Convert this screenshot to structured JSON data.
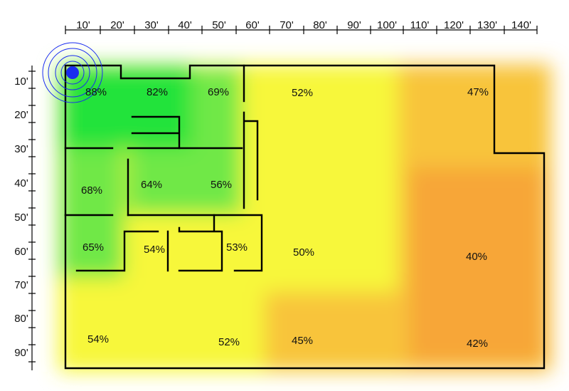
{
  "scale": {
    "x_labels": [
      "10'",
      "20'",
      "30'",
      "40'",
      "50'",
      "60'",
      "70'",
      "80'",
      "90'",
      "100'",
      "110'",
      "120'",
      "130'",
      "140'"
    ],
    "y_labels": [
      "10'",
      "20'",
      "30'",
      "40'",
      "50'",
      "60'",
      "70'",
      "80'",
      "90'"
    ]
  },
  "router": {
    "color": "#1a2cf0"
  },
  "colors": {
    "very_strong": "#22e33a",
    "strong": "#6fe846",
    "medium": "#f7f73a",
    "weak": "#f8c43a",
    "weakest": "#f7a637",
    "walls": "#000000"
  },
  "rooms": [
    {
      "id": "r1",
      "signal": "88%"
    },
    {
      "id": "r2",
      "signal": "82%"
    },
    {
      "id": "r3",
      "signal": "69%"
    },
    {
      "id": "r4",
      "signal": "52%"
    },
    {
      "id": "r5",
      "signal": "47%"
    },
    {
      "id": "r6",
      "signal": "68%"
    },
    {
      "id": "r7",
      "signal": "64%"
    },
    {
      "id": "r8",
      "signal": "56%"
    },
    {
      "id": "r9",
      "signal": "65%"
    },
    {
      "id": "r10",
      "signal": "54%"
    },
    {
      "id": "r11",
      "signal": "53%"
    },
    {
      "id": "r12",
      "signal": "50%"
    },
    {
      "id": "r13",
      "signal": "40%"
    },
    {
      "id": "r14",
      "signal": "54%"
    },
    {
      "id": "r15",
      "signal": "52%"
    },
    {
      "id": "r16",
      "signal": "45%"
    },
    {
      "id": "r17",
      "signal": "42%"
    }
  ]
}
